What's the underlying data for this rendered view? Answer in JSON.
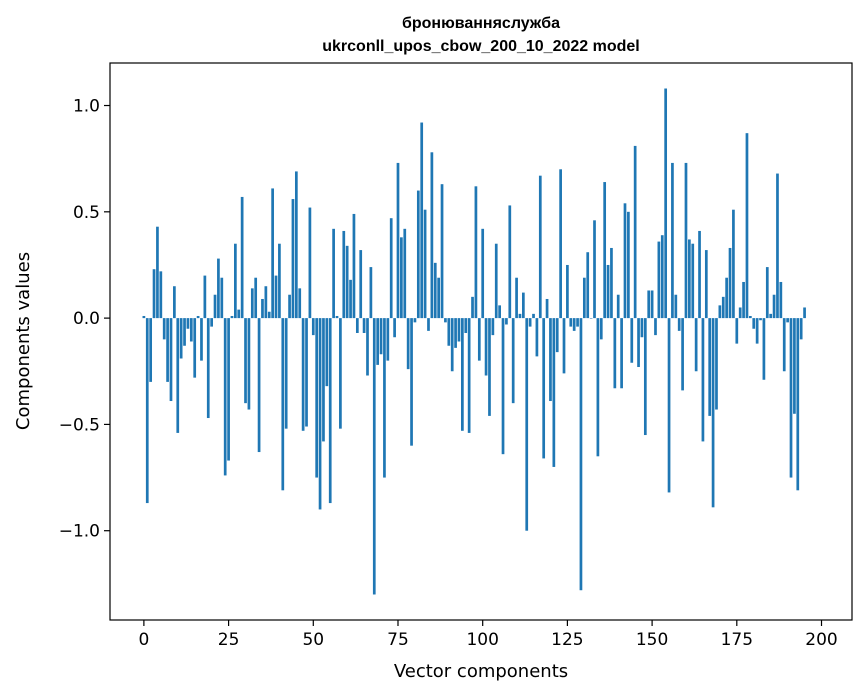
{
  "chart_data": {
    "type": "bar",
    "title": "бронюванняслужба",
    "subtitle": "ukrconll_upos_cbow_200_10_2022 model",
    "xlabel": "Vector components",
    "ylabel": "Components values",
    "xlim": [
      -10,
      209
    ],
    "ylim": [
      -1.42,
      1.2
    ],
    "xticks": [
      0,
      25,
      50,
      75,
      100,
      125,
      150,
      175,
      200
    ],
    "yticks": [
      -1.0,
      -0.5,
      0.0,
      0.5,
      1.0
    ],
    "ytick_labels": [
      "−1.0",
      "−0.5",
      "0.0",
      "0.5",
      "1.0"
    ],
    "color": "#1f77b4",
    "values": [
      0.01,
      -0.87,
      -0.3,
      0.23,
      0.43,
      0.22,
      -0.1,
      -0.3,
      -0.39,
      0.15,
      -0.54,
      -0.19,
      -0.13,
      -0.05,
      -0.11,
      -0.28,
      0.01,
      -0.2,
      0.2,
      -0.47,
      -0.04,
      0.11,
      0.28,
      0.19,
      -0.74,
      -0.67,
      0.01,
      0.35,
      0.04,
      0.57,
      -0.4,
      -0.43,
      0.14,
      0.19,
      -0.63,
      0.09,
      0.15,
      0.03,
      0.61,
      0.2,
      0.35,
      -0.81,
      -0.52,
      0.11,
      0.56,
      0.69,
      0.14,
      -0.53,
      -0.51,
      0.52,
      -0.08,
      -0.75,
      -0.9,
      -0.58,
      -0.32,
      -0.87,
      0.42,
      0.01,
      -0.52,
      0.41,
      0.34,
      0.18,
      0.49,
      -0.07,
      0.32,
      -0.07,
      -0.27,
      0.24,
      -1.3,
      -0.22,
      -0.17,
      -0.75,
      -0.2,
      0.47,
      -0.09,
      0.73,
      0.38,
      0.42,
      -0.24,
      -0.6,
      -0.02,
      0.6,
      0.92,
      0.51,
      -0.06,
      0.78,
      0.26,
      0.19,
      0.63,
      -0.02,
      -0.13,
      -0.25,
      -0.14,
      -0.11,
      -0.53,
      -0.07,
      -0.54,
      0.1,
      0.62,
      -0.2,
      0.42,
      -0.27,
      -0.46,
      -0.08,
      0.35,
      0.06,
      -0.64,
      -0.03,
      0.53,
      -0.4,
      0.19,
      0.02,
      0.12,
      -1.0,
      -0.04,
      0.02,
      -0.18,
      0.67,
      -0.66,
      0.09,
      -0.39,
      -0.7,
      -0.16,
      0.7,
      -0.26,
      0.25,
      -0.04,
      -0.06,
      -0.04,
      -1.28,
      0.19,
      0.31,
      0.0,
      0.46,
      -0.65,
      -0.1,
      0.64,
      0.25,
      0.33,
      -0.33,
      0.11,
      -0.33,
      0.54,
      0.5,
      -0.21,
      0.81,
      -0.23,
      -0.09,
      -0.55,
      0.13,
      0.13,
      -0.08,
      0.36,
      0.39,
      1.08,
      -0.82,
      0.73,
      0.11,
      -0.06,
      -0.34,
      0.73,
      0.37,
      0.35,
      -0.25,
      0.41,
      -0.58,
      0.32,
      -0.46,
      -0.89,
      -0.43,
      0.06,
      0.1,
      0.19,
      0.33,
      0.51,
      -0.12,
      0.05,
      0.17,
      0.87,
      0.01,
      -0.05,
      -0.12,
      -0.01,
      -0.29,
      0.24,
      0.02,
      0.11,
      0.68,
      0.17,
      -0.25,
      -0.02,
      -0.75,
      -0.45,
      -0.81,
      -0.1,
      0.05
    ]
  }
}
